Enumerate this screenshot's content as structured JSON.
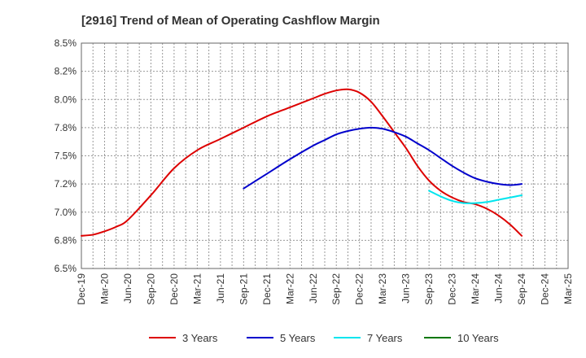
{
  "chart_data": {
    "type": "line",
    "title": "[2916]  Trend of Mean of Operating Cashflow Margin",
    "xlabel": "",
    "ylabel": "",
    "ylim": [
      6.5,
      8.5
    ],
    "yticks": [
      "6.5%",
      "6.8%",
      "7.0%",
      "7.2%",
      "7.5%",
      "7.8%",
      "8.0%",
      "8.2%",
      "8.5%"
    ],
    "xticks": [
      "Dec-19",
      "Mar-20",
      "Jun-20",
      "Sep-20",
      "Dec-20",
      "Mar-21",
      "Jun-21",
      "Sep-21",
      "Dec-21",
      "Mar-22",
      "Jun-22",
      "Sep-22",
      "Dec-22",
      "Mar-23",
      "Jun-23",
      "Sep-23",
      "Dec-23",
      "Mar-24",
      "Jun-24",
      "Sep-24",
      "Dec-24",
      "Mar-25"
    ],
    "x_unit": "quarter index (0 = Dec-19, 21 = Mar-25)",
    "grid": true,
    "legend_position": "bottom",
    "series": [
      {
        "name": "3 Years",
        "color": "#dd0000",
        "x": [
          0,
          0.5,
          1,
          1.5,
          2,
          3,
          4,
          5,
          6,
          7,
          8,
          9,
          10,
          10.5,
          11,
          11.5,
          12,
          12.5,
          13,
          13.5,
          14,
          14.5,
          15,
          15.5,
          16,
          16.5,
          17,
          17.5,
          18,
          18.5,
          19
        ],
        "values": [
          6.79,
          6.8,
          6.83,
          6.87,
          6.93,
          7.15,
          7.39,
          7.55,
          7.65,
          7.75,
          7.85,
          7.93,
          8.01,
          8.05,
          8.08,
          8.09,
          8.06,
          7.98,
          7.85,
          7.71,
          7.57,
          7.41,
          7.28,
          7.19,
          7.13,
          7.09,
          7.07,
          7.03,
          6.97,
          6.89,
          6.79
        ]
      },
      {
        "name": "5 Years",
        "color": "#0000cc",
        "x": [
          7,
          8,
          9,
          10,
          10.5,
          11,
          11.5,
          12,
          12.5,
          13,
          13.5,
          14,
          14.5,
          15,
          15.5,
          16,
          16.5,
          17,
          17.5,
          18,
          18.5,
          19
        ],
        "values": [
          7.21,
          7.34,
          7.47,
          7.59,
          7.64,
          7.69,
          7.72,
          7.74,
          7.75,
          7.74,
          7.71,
          7.67,
          7.61,
          7.55,
          7.48,
          7.41,
          7.35,
          7.3,
          7.27,
          7.25,
          7.24,
          7.25
        ]
      },
      {
        "name": "7 Years",
        "color": "#00e5ee",
        "x": [
          15,
          15.5,
          16,
          16.5,
          17,
          17.5,
          18,
          18.5,
          19
        ],
        "values": [
          7.19,
          7.14,
          7.1,
          7.08,
          7.08,
          7.09,
          7.11,
          7.13,
          7.15
        ]
      },
      {
        "name": "10 Years",
        "color": "#007700",
        "x": [],
        "values": []
      }
    ]
  }
}
